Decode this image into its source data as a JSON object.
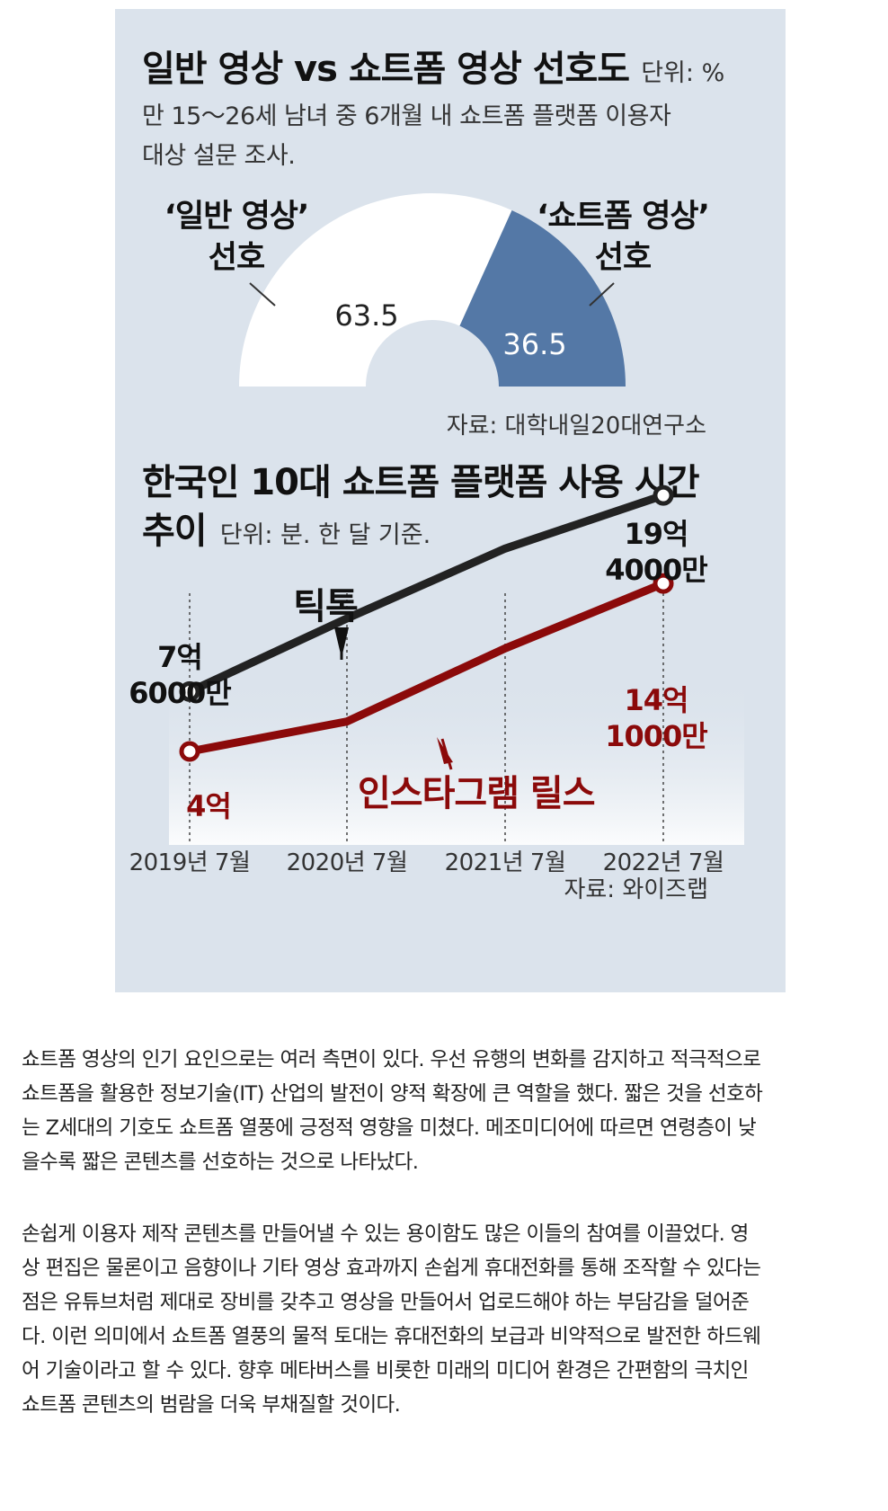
{
  "colors": {
    "panel_bg": "#dbe3ec",
    "shorts_slice": "#5478a6",
    "tiktok_line": "#222222",
    "reels_line": "#8b0a0a"
  },
  "chart_data": [
    {
      "type": "pie",
      "title": "일반 영상 vs 쇼트폼 영상 선호도",
      "unit": "단위: %",
      "subtitle_lines": [
        "만 15～26세 남녀 중 6개월 내 쇼트폼 플랫폼 이용자",
        "대상 설문 조사."
      ],
      "style": "half-donut",
      "slices": [
        {
          "label_lines": [
            "‘일반 영상’",
            "선호"
          ],
          "value": 63.5,
          "value_text": "63.5",
          "color": "#ffffff"
        },
        {
          "label_lines": [
            "‘쇼트폼 영상’",
            "선호"
          ],
          "value": 36.5,
          "value_text": "36.5",
          "color": "#5478a6"
        }
      ],
      "source": "자료: 대학내일20대연구소"
    },
    {
      "type": "line",
      "title_lines": [
        "한국인 10대 쇼트폼 플랫폼 사용 시간",
        "추이"
      ],
      "unit": "단위: 분. 한 달 기준.",
      "x": [
        "2019년 7월",
        "2020년 7월",
        "2021년 7월",
        "2022년 7월"
      ],
      "ylim": [
        0,
        2000000000
      ],
      "series": [
        {
          "name": "틱톡",
          "color": "#222222",
          "values": [
            760000000,
            1200000000,
            1620000000,
            1940000000
          ]
        },
        {
          "name": "인스타그램 릴스",
          "color": "#8b0a0a",
          "values": [
            400000000,
            580000000,
            1020000000,
            1410000000
          ]
        }
      ],
      "annotations": {
        "tiktok_start": [
          "7억",
          "6000만"
        ],
        "tiktok_end": [
          "19억",
          "4000만"
        ],
        "reels_start": [
          "4억"
        ],
        "reels_end": [
          "14억",
          "1000만"
        ]
      },
      "source": "자료: 와이즈랩"
    }
  ],
  "article": {
    "paragraphs": [
      [
        "쇼트폼 영상의 인기 요인으로는 여러 측면이 있다. 우선 유행의 변화를 감지하고 적극적으로",
        "쇼트폼을 활용한 정보기술(IT) 산업의 발전이 양적 확장에 큰 역할을 했다. 짧은 것을 선호하",
        "는 Z세대의 기호도 쇼트폼 열풍에 긍정적 영향을 미쳤다. 메조미디어에 따르면 연령층이 낮",
        "을수록 짧은 콘텐츠를 선호하는 것으로 나타났다."
      ],
      [
        "손쉽게 이용자 제작 콘텐츠를 만들어낼 수 있는 용이함도 많은 이들의 참여를 이끌었다. 영",
        "상 편집은 물론이고 음향이나 기타 영상 효과까지 손쉽게 휴대전화를 통해 조작할 수 있다는",
        "점은 유튜브처럼 제대로 장비를 갖추고 영상을 만들어서 업로드해야 하는 부담감을 덜어준",
        "다. 이런 의미에서 쇼트폼 열풍의 물적 토대는 휴대전화의 보급과 비약적으로 발전한 하드웨",
        "어 기술이라고 할 수 있다. 향후 메타버스를 비롯한 미래의 미디어 환경은 간편함의 극치인",
        "쇼트폼 콘텐츠의 범람을 더욱 부채질할 것이다."
      ]
    ]
  }
}
